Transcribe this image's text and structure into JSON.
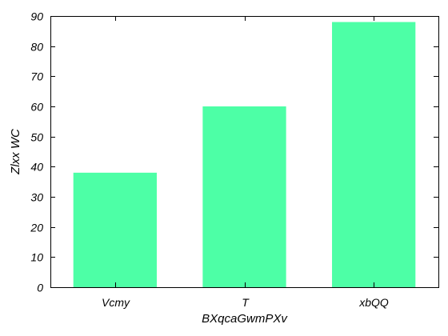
{
  "chart_data": {
    "type": "bar",
    "title": "",
    "xlabel": "BXqcaGwmPXv",
    "ylabel": "Zlxx WC",
    "categories": [
      "Vcmy",
      "T",
      "xbQQ"
    ],
    "values": [
      38,
      60,
      88
    ],
    "ylim": [
      0,
      90
    ],
    "yticks": [
      0,
      10,
      20,
      30,
      40,
      50,
      60,
      70,
      80,
      90
    ],
    "grid": false,
    "legend": "none",
    "bar_color": "#4dffa6",
    "axis_color": "#000000"
  }
}
